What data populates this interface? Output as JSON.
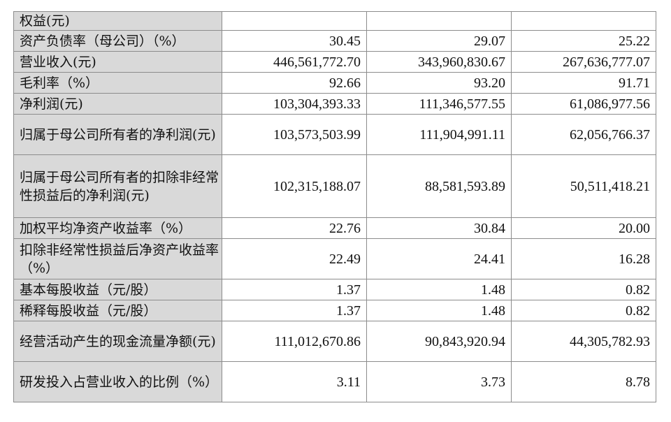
{
  "rows": [
    {
      "label": "权益(元)",
      "v1": "",
      "v2": "",
      "v3": ""
    },
    {
      "label": "资产负债率（母公司）（%）",
      "v1": "30.45",
      "v2": "29.07",
      "v3": "25.22"
    },
    {
      "label": "营业收入(元)",
      "v1": "446,561,772.70",
      "v2": "343,960,830.67",
      "v3": "267,636,777.07"
    },
    {
      "label": "毛利率（%）",
      "v1": "92.66",
      "v2": "93.20",
      "v3": "91.71"
    },
    {
      "label": "净利润(元)",
      "v1": "103,304,393.33",
      "v2": "111,346,577.55",
      "v3": "61,086,977.56"
    },
    {
      "label": "归属于母公司所有者的净利润(元)",
      "v1": "103,573,503.99",
      "v2": "111,904,991.11",
      "v3": "62,056,766.37"
    },
    {
      "label": "归属于母公司所有者的扣除非经常性损益后的净利润(元)",
      "v1": "102,315,188.07",
      "v2": "88,581,593.89",
      "v3": "50,511,418.21"
    },
    {
      "label": "加权平均净资产收益率（%）",
      "v1": "22.76",
      "v2": "30.84",
      "v3": "20.00"
    },
    {
      "label": "扣除非经常性损益后净资产收益率（%）",
      "v1": "22.49",
      "v2": "24.41",
      "v3": "16.28"
    },
    {
      "label": "基本每股收益（元/股）",
      "v1": "1.37",
      "v2": "1.48",
      "v3": "0.82"
    },
    {
      "label": "稀释每股收益（元/股）",
      "v1": "1.37",
      "v2": "1.48",
      "v3": "0.82"
    },
    {
      "label": "经营活动产生的现金流量净额(元)",
      "v1": "111,012,670.86",
      "v2": "90,843,920.94",
      "v3": "44,305,782.93"
    },
    {
      "label": "研发投入占营业收入的比例（%）",
      "v1": "3.11",
      "v2": "3.73",
      "v3": "8.78"
    }
  ]
}
